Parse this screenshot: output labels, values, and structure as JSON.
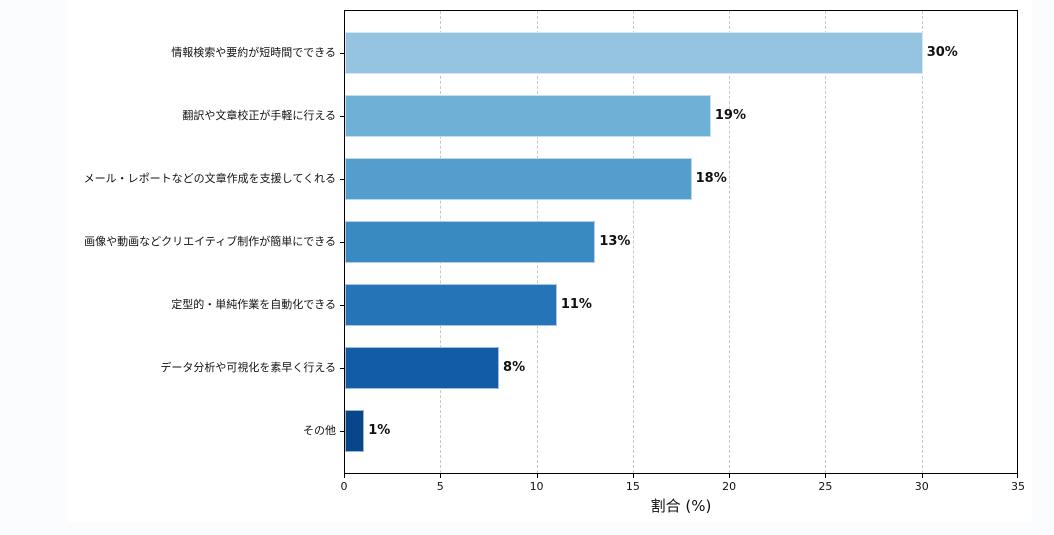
{
  "chart_data": {
    "type": "bar",
    "orientation": "horizontal",
    "title": "",
    "xlabel": "割合 (%)",
    "ylabel": "",
    "xlim": [
      0,
      35
    ],
    "xticks": [
      0,
      5,
      10,
      15,
      20,
      25,
      30,
      35
    ],
    "grid": {
      "x": true,
      "y": false,
      "style": "dashed"
    },
    "legend": null,
    "categories": [
      "情報検索や要約が短時間でできる",
      "翻訳や文章校正が手軽に行える",
      "メール・レポートなどの文章作成を支援してくれる",
      "画像や動画などクリエイティブ制作が簡単にできる",
      "定型的・単純作業を自動化できる",
      "データ分析や可視化を素早く行える",
      "その他"
    ],
    "values": [
      30,
      19,
      18,
      13,
      11,
      8,
      1
    ],
    "value_labels": [
      "30%",
      "19%",
      "18%",
      "13%",
      "11%",
      "8%",
      "1%"
    ],
    "colors": [
      "#94c4df",
      "#6fb0d7",
      "#539ecd",
      "#3a8ac2",
      "#2474b7",
      "#115ca5",
      "#08468b"
    ]
  },
  "axis": {
    "xtick_labels": [
      "0",
      "5",
      "10",
      "15",
      "20",
      "25",
      "30",
      "35"
    ],
    "xlabel": "割合 (%)"
  }
}
